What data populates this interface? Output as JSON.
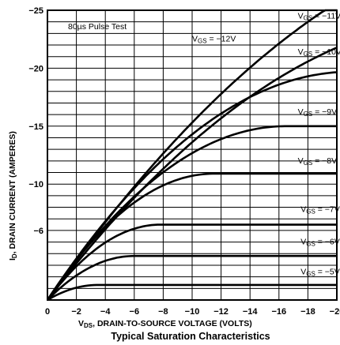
{
  "chart_data": {
    "type": "line",
    "title": "Typical Saturation Characteristics",
    "xlabel_main": "V",
    "xlabel_sub": "DS",
    "xlabel_rest": ", DRAIN-TO-SOURCE VOLTAGE (VOLTS)",
    "ylabel_main": "I",
    "ylabel_sub": "D",
    "ylabel_rest": ", DRAIN CURRENT (AMPERES)",
    "annotation": "80µs Pulse Test",
    "xlim": [
      0,
      -20
    ],
    "ylim": [
      0,
      -25
    ],
    "x_ticks": [
      "0",
      "−2",
      "−4",
      "−6",
      "−8",
      "−10",
      "−12",
      "−14",
      "−16",
      "−18",
      "−20"
    ],
    "y_ticks": [
      {
        "value": -25,
        "label": "−25"
      },
      {
        "value": -20,
        "label": "−20"
      },
      {
        "value": -15,
        "label": "−15"
      },
      {
        "value": -10,
        "label": "−10"
      },
      {
        "value": -6,
        "label": "−6"
      }
    ],
    "grid": true,
    "series": [
      {
        "label": "= −5V",
        "sat": -1.3,
        "vk": -3.5,
        "lx": -17.5,
        "ly": -2.2
      },
      {
        "label": "= −6V",
        "sat": -3.8,
        "vk": -6.0,
        "lx": -17.5,
        "ly": -4.8
      },
      {
        "label": "= −7V",
        "sat": -6.5,
        "vk": -7.8,
        "lx": -17.5,
        "ly": -7.6
      },
      {
        "label": "= −8V",
        "sat": -10.9,
        "vk": -11.5,
        "lx": -17.3,
        "ly": -11.8
      },
      {
        "label": "= −9V",
        "sat": -15.0,
        "vk": -16.5,
        "lx": -17.3,
        "ly": -16.0
      },
      {
        "label": "= −10V",
        "sat": -19.7,
        "vk": -21.0,
        "lx": -17.3,
        "ly": -21.2
      },
      {
        "label": "= −11V",
        "sat": -24.5,
        "vk": -30.0,
        "lx": -17.3,
        "ly": -24.3
      },
      {
        "label": "= −12V",
        "sat": -32.0,
        "vk": -36.0,
        "lx": -10.0,
        "ly": -22.3
      }
    ]
  }
}
